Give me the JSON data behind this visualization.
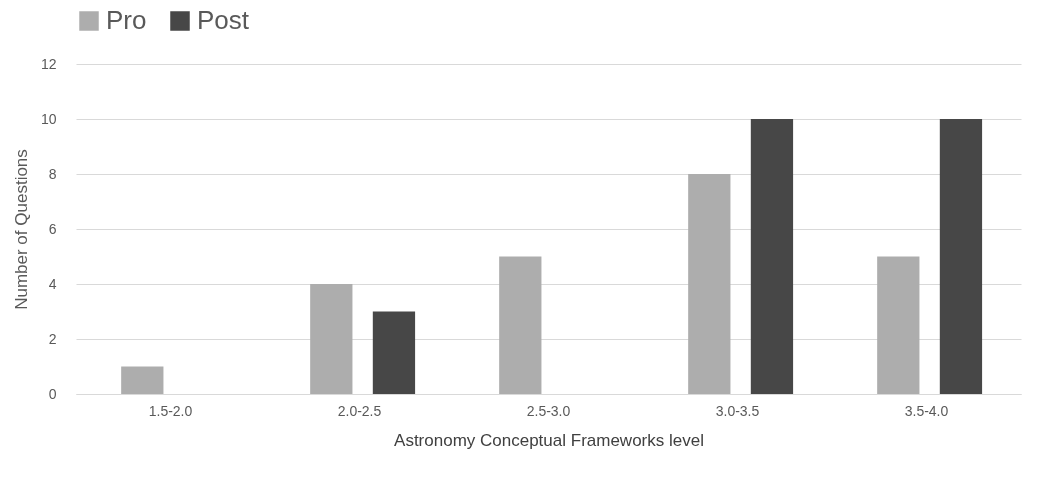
{
  "chart_data": {
    "type": "bar",
    "xlabel": "Astronomy Conceptual Frameworks level",
    "ylabel": "Number of Questions",
    "categories": [
      "1.5-2.0",
      "2.0-2.5",
      "2.5-3.0",
      "3.0-3.5",
      "3.5-4.0"
    ],
    "series": [
      {
        "name": "Pro",
        "color": "#adadad",
        "values": [
          1,
          4,
          5,
          8,
          5
        ]
      },
      {
        "name": "Post",
        "color": "#474747",
        "values": [
          0,
          3,
          0,
          10,
          10
        ]
      }
    ],
    "ylim": [
      0,
      12
    ],
    "yticks": [
      0,
      2,
      4,
      6,
      8,
      10,
      12
    ],
    "grid": "y",
    "legend": "top"
  }
}
